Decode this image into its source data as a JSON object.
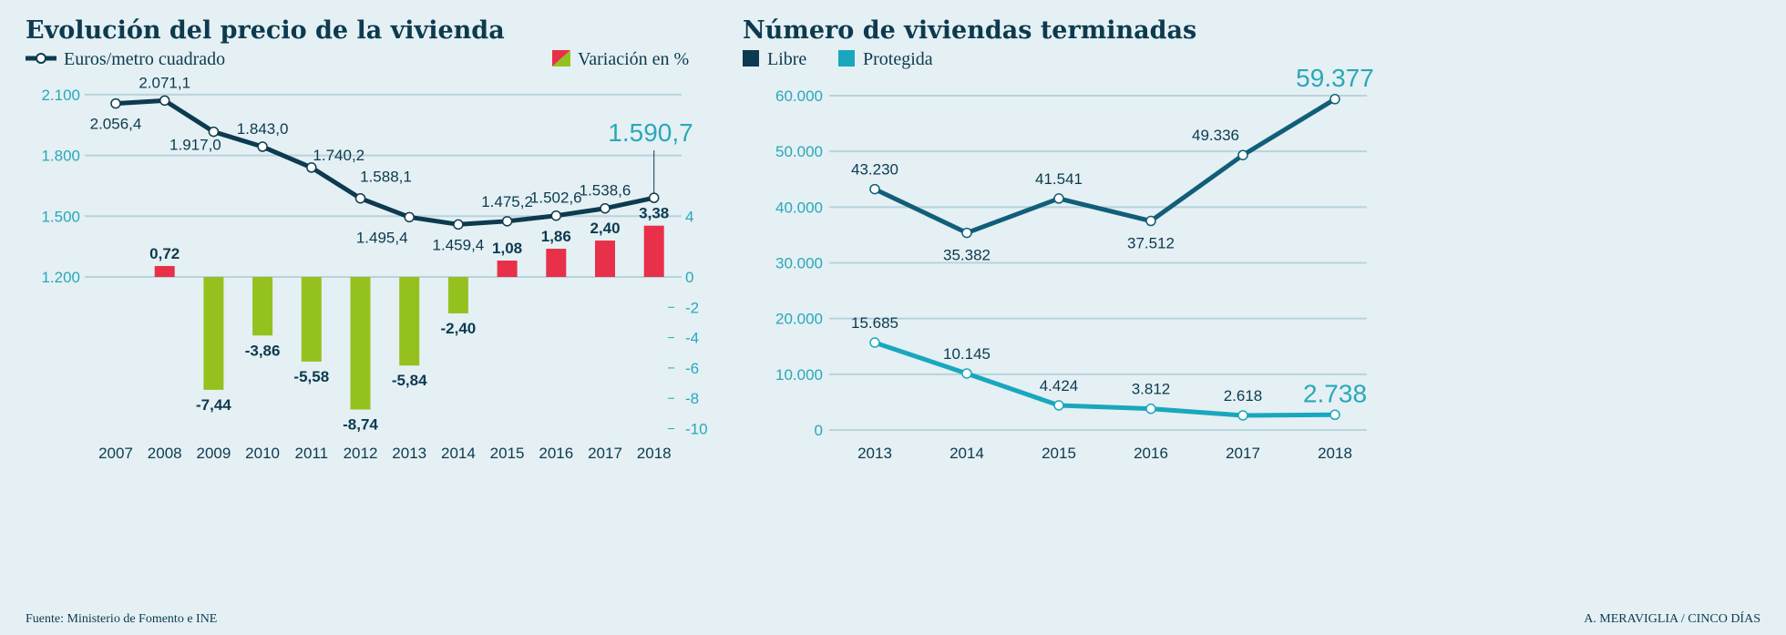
{
  "colors": {
    "background": "#e4f0f4",
    "price_line": "#0d3a4f",
    "positive": "#e8304a",
    "negative": "#95c11f",
    "libre": "#115e78",
    "protegida": "#1aa7bd",
    "axis": "#2aa8b8"
  },
  "source": "Fuente: Ministerio de Fomento e INE",
  "credit": "A. MERAVIGLIA / CINCO DÍAS",
  "chart_data": [
    {
      "type": "line+bar",
      "title": "Evolución del precio de la vivienda",
      "legend": [
        "Euros/metro cuadrado",
        "Variación en %"
      ],
      "legend_placement": "top",
      "categories": [
        "2007",
        "2008",
        "2009",
        "2010",
        "2011",
        "2012",
        "2013",
        "2014",
        "2015",
        "2016",
        "2017",
        "2018"
      ],
      "line_series": {
        "name": "Euros/metro cuadrado",
        "values": [
          2056.4,
          2071.1,
          1917.0,
          1843.0,
          1740.2,
          1588.1,
          1495.4,
          1459.4,
          1475.2,
          1502.6,
          1538.6,
          1590.7
        ],
        "labels": [
          "2.056,4",
          "2.071,1",
          "1.917,0",
          "1.843,0",
          "1.740,2",
          "1.588,1",
          "1.495,4",
          "1.459,4",
          "1.475,2",
          "1.502,6",
          "1.538,6",
          "1.590,7"
        ]
      },
      "bar_series": {
        "name": "Variación en %",
        "values": [
          null,
          0.72,
          -7.44,
          -3.86,
          -5.58,
          -8.74,
          -5.84,
          -2.4,
          1.08,
          1.86,
          2.4,
          3.38
        ],
        "labels": [
          "",
          "0,72",
          "-7,44",
          "-3,86",
          "-5,58",
          "-8,74",
          "-5,84",
          "-2,40",
          "1,08",
          "1,86",
          "2,40",
          "3,38"
        ]
      },
      "y_left": {
        "range": [
          1200,
          2100
        ],
        "ticks": [
          "2.100",
          "1.800",
          "1.500",
          "1.200"
        ]
      },
      "y_right": {
        "range": [
          -10,
          4
        ],
        "ticks": [
          "4",
          "0",
          "-2",
          "-4",
          "-6",
          "-8",
          "-10"
        ]
      },
      "grid": true
    },
    {
      "type": "line",
      "title": "Número de viviendas terminadas",
      "legend": [
        "Libre",
        "Protegida"
      ],
      "legend_placement": "top",
      "categories": [
        "2013",
        "2014",
        "2015",
        "2016",
        "2017",
        "2018"
      ],
      "series": [
        {
          "name": "Libre",
          "values": [
            43230,
            35382,
            41541,
            37512,
            49336,
            59377
          ],
          "labels": [
            "43.230",
            "35.382",
            "41.541",
            "37.512",
            "49.336",
            "59.377"
          ]
        },
        {
          "name": "Protegida",
          "values": [
            15685,
            10145,
            4424,
            3812,
            2618,
            2738
          ],
          "labels": [
            "15.685",
            "10.145",
            "4.424",
            "3.812",
            "2.618",
            "2.738"
          ]
        }
      ],
      "y": {
        "range": [
          0,
          60000
        ],
        "ticks": [
          "60.000",
          "50.000",
          "40.000",
          "30.000",
          "20.000",
          "10.000",
          "0"
        ]
      },
      "grid": true
    }
  ]
}
